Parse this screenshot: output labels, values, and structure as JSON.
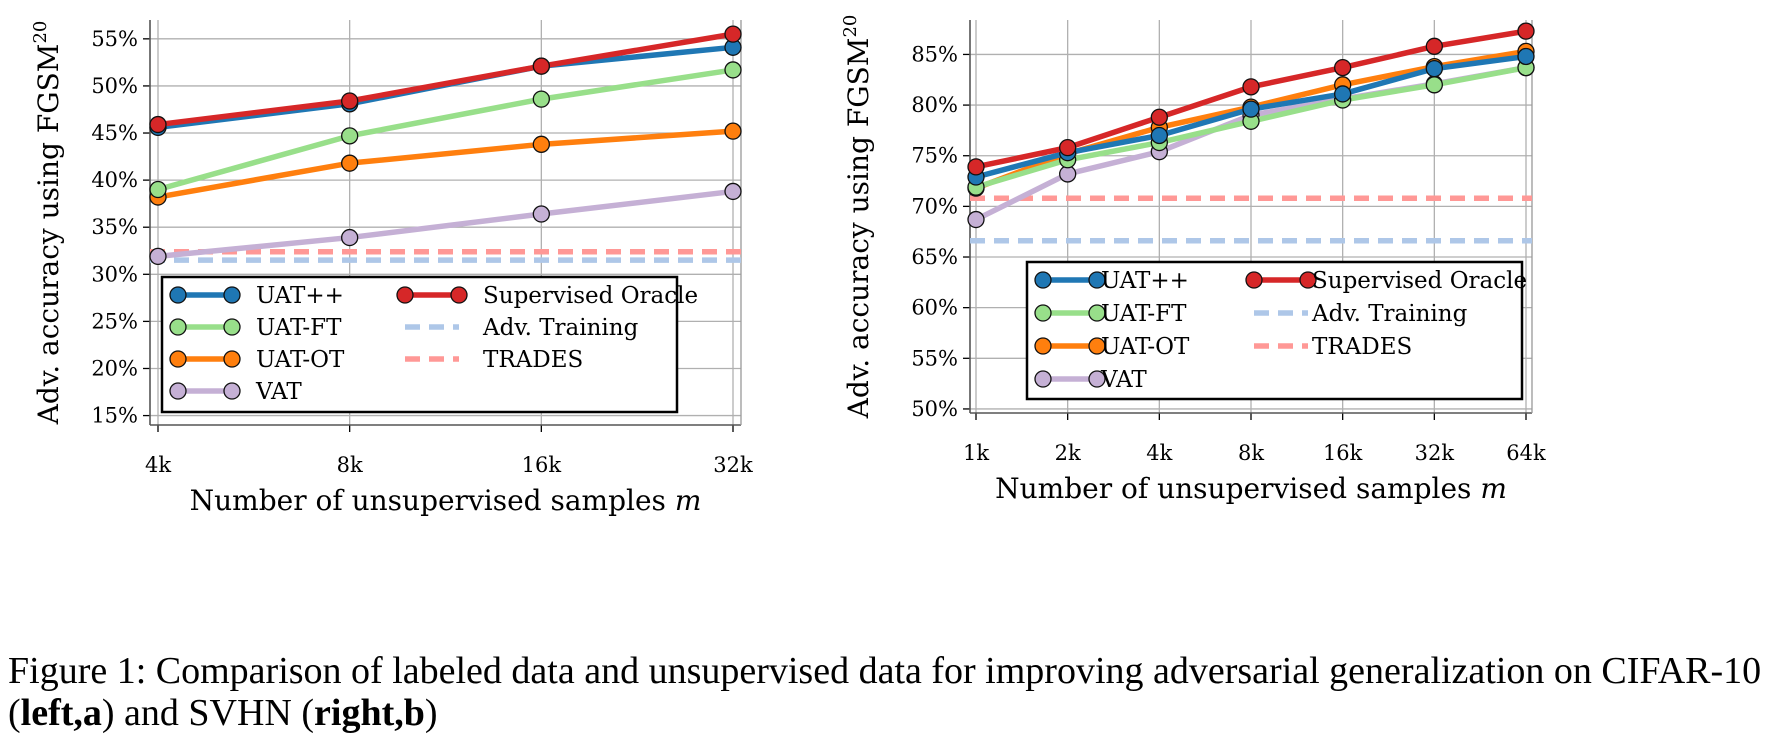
{
  "chart_data": [
    {
      "type": "line",
      "ylabel": "Adv. accuracy using FGSM",
      "ylabel_sup": "20",
      "xlabel": "Number of unsupervised samples",
      "xlabel_var": "m",
      "categories": [
        "4k",
        "8k",
        "16k",
        "32k"
      ],
      "y_ticks": [
        "15%",
        "20%",
        "25%",
        "30%",
        "35%",
        "40%",
        "45%",
        "50%",
        "55%"
      ],
      "ylim": [
        14,
        57
      ],
      "grid": true,
      "legend_position": "lower-center",
      "series": [
        {
          "name": "UAT++",
          "color": "#1f77b4",
          "values": [
            45.6,
            48.1,
            52.1,
            54.1
          ]
        },
        {
          "name": "UAT-FT",
          "color": "#98df8a",
          "values": [
            39.0,
            44.7,
            48.6,
            51.7
          ]
        },
        {
          "name": "UAT-OT",
          "color": "#ff7f0e",
          "values": [
            38.2,
            41.8,
            43.8,
            45.2
          ]
        },
        {
          "name": "VAT",
          "color": "#c5b0d5",
          "values": [
            31.9,
            33.9,
            36.4,
            38.8
          ]
        },
        {
          "name": "Supervised Oracle",
          "color": "#d62728",
          "values": [
            45.9,
            48.4,
            52.1,
            55.5
          ]
        },
        {
          "name": "Adv. Training",
          "color": "#aec7e8",
          "dashed": true,
          "value": 31.5
        },
        {
          "name": "TRADES",
          "color": "#ff9896",
          "dashed": true,
          "value": 32.4
        }
      ]
    },
    {
      "type": "line",
      "ylabel": "Adv. accuracy using FGSM",
      "ylabel_sup": "20",
      "xlabel": "Number of unsupervised samples",
      "xlabel_var": "m",
      "categories": [
        "1k",
        "2k",
        "4k",
        "8k",
        "16k",
        "32k",
        "64k"
      ],
      "y_ticks": [
        "50%",
        "55%",
        "60%",
        "65%",
        "70%",
        "75%",
        "80%",
        "85%"
      ],
      "ylim": [
        49.6,
        88.4
      ],
      "grid": true,
      "legend_position": "lower-center",
      "series": [
        {
          "name": "UAT++",
          "color": "#1f77b4",
          "values": [
            72.9,
            75.3,
            77.0,
            79.6,
            81.1,
            83.6,
            84.8
          ]
        },
        {
          "name": "UAT-FT",
          "color": "#98df8a",
          "values": [
            71.9,
            74.6,
            76.3,
            78.4,
            80.5,
            82.0,
            83.7
          ]
        },
        {
          "name": "UAT-OT",
          "color": "#ff7f0e",
          "values": [
            71.8,
            75.2,
            77.8,
            79.8,
            82.0,
            83.8,
            85.3
          ]
        },
        {
          "name": "VAT",
          "color": "#c5b0d5",
          "values": [
            68.7,
            73.2,
            75.4,
            79.0,
            80.6,
            82.1,
            83.7
          ]
        },
        {
          "name": "Supervised Oracle",
          "color": "#d62728",
          "values": [
            73.9,
            75.8,
            78.8,
            81.8,
            83.7,
            85.8,
            87.3
          ]
        },
        {
          "name": "Adv. Training",
          "color": "#aec7e8",
          "dashed": true,
          "value": 66.6
        },
        {
          "name": "TRADES",
          "color": "#ff9896",
          "dashed": true,
          "value": 70.8
        }
      ]
    }
  ],
  "caption": {
    "prefix": "Figure 1:  Comparison of labeled data and unsupervised data for improving adversarial generalization on CIFAR-10 (",
    "bold1": "left,a",
    "middle": ") and SVHN (",
    "bold2": "right,b",
    "suffix": ")"
  }
}
